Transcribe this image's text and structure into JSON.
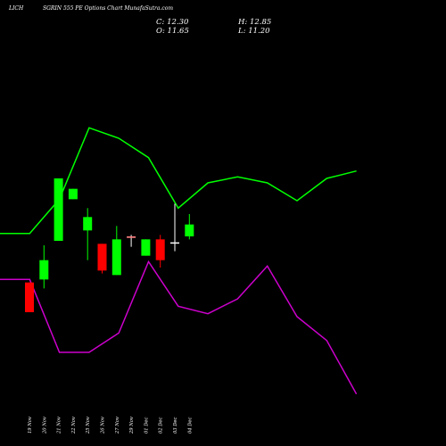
{
  "header": {
    "symbol": "LICH",
    "title": "SGRIN 555 PE Options Chart MunafaSutra.com",
    "open": "O: 11.65",
    "high": "H: 12.85",
    "low": "L: 11.20",
    "close": "C: 12.30"
  },
  "colors": {
    "background": "#000000",
    "up": "#00ff00",
    "down": "#ff0000",
    "upper_line": "#00ff00",
    "lower_line": "#cc00cc",
    "doji": "#ffffff",
    "doji_alt": "#ff8080"
  },
  "chart_data": {
    "type": "candlestick",
    "x_tick_labels": [
      "19 Nov",
      "20 Nov",
      "21 Nov",
      "22 Nov",
      "25 Nov",
      "26 Nov",
      "27 Nov",
      "29 Nov",
      "01 Dec",
      "02 Dec",
      "03 Dec",
      "04 Dec"
    ],
    "candles": [
      {
        "date": "19 Nov",
        "open": 11.0,
        "high": 11.0,
        "low": 9.0,
        "close": 9.0
      },
      {
        "date": "20 Nov",
        "open": 11.2,
        "high": 13.5,
        "low": 10.6,
        "close": 12.5
      },
      {
        "date": "21 Nov",
        "open": 13.8,
        "high": 18.0,
        "low": 13.8,
        "close": 18.0
      },
      {
        "date": "22 Nov",
        "open": 16.6,
        "high": 17.3,
        "low": 16.6,
        "close": 17.3
      },
      {
        "date": "25 Nov",
        "open": 14.5,
        "high": 16.0,
        "low": 12.5,
        "close": 15.4
      },
      {
        "date": "26 Nov",
        "open": 13.6,
        "high": 13.6,
        "low": 11.6,
        "close": 11.8
      },
      {
        "date": "27 Nov",
        "open": 11.5,
        "high": 14.8,
        "low": 11.5,
        "close": 13.9
      },
      {
        "date": "29 Nov",
        "open": 14.1,
        "high": 14.2,
        "low": 13.4,
        "close": 14.0
      },
      {
        "date": "01 Dec",
        "open": 12.8,
        "high": 13.9,
        "low": 12.8,
        "close": 13.9
      },
      {
        "date": "02 Dec",
        "open": 13.9,
        "high": 14.2,
        "low": 12.0,
        "close": 12.5
      },
      {
        "date": "03 Dec",
        "open": 13.7,
        "high": 16.3,
        "low": 13.1,
        "close": 13.7
      },
      {
        "date": "04 Dec",
        "open": 14.1,
        "high": 15.6,
        "low": 13.9,
        "close": 14.9
      }
    ],
    "overlay_lines": [
      {
        "color": "#00ff00",
        "values": [
          14.3,
          14.3,
          16.6,
          21.4,
          20.7,
          19.4,
          16.0,
          17.7,
          18.1,
          17.7,
          16.5,
          18.0,
          18.5
        ]
      },
      {
        "color": "#cc00cc",
        "values": [
          11.2,
          11.2,
          6.3,
          6.3,
          7.6,
          12.4,
          9.4,
          8.9,
          9.9,
          12.1,
          8.7,
          7.1,
          3.5
        ]
      }
    ],
    "ylim": [
      0,
      30
    ],
    "grid": false,
    "legend": "none"
  }
}
